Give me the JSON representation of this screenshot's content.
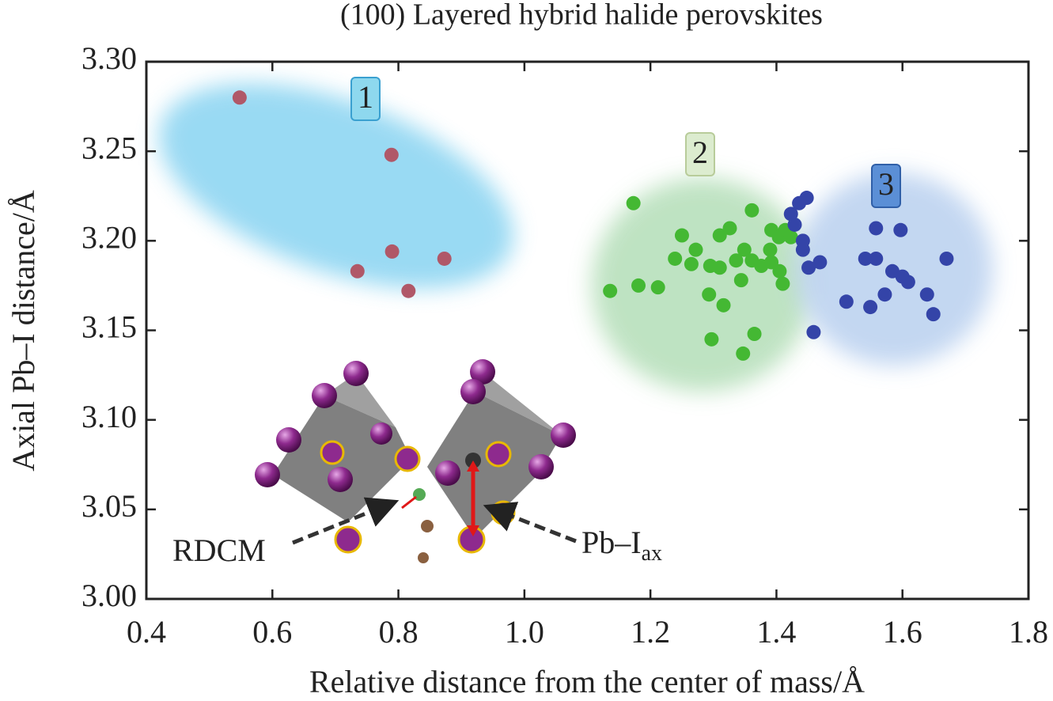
{
  "chart_data": {
    "type": "scatter",
    "title": "(100) Layered hybrid halide perovskites",
    "x_label": "Relative distance from the center of mass/Å",
    "y_label": "Axial Pb–I distance/Å",
    "xlim": [
      0.4,
      1.8
    ],
    "ylim": [
      3.0,
      3.3
    ],
    "xticks": [
      0.4,
      0.6,
      0.8,
      {
        "value": 1.0,
        "label": "1.0"
      },
      1.2,
      1.4,
      1.6,
      1.8
    ],
    "yticks": [
      {
        "value": 3.0,
        "label": "3.00"
      },
      3.05,
      {
        "value": 3.1,
        "label": "3.10"
      },
      3.15,
      {
        "value": 3.2,
        "label": "3.20"
      },
      3.25,
      {
        "value": 3.3,
        "label": "3.30"
      }
    ],
    "annotations": [
      {
        "text": "RDCM"
      },
      {
        "text": "Pb–I",
        "subscript": "ax"
      }
    ],
    "series": [
      {
        "name": "1",
        "color": "#b05868",
        "x": [
          0.548,
          0.789,
          0.79,
          0.735,
          0.873,
          0.816
        ],
        "y": [
          3.28,
          3.248,
          3.194,
          3.183,
          3.19,
          3.172
        ]
      },
      {
        "name": "2",
        "color": "#44b833",
        "x": [
          1.173,
          1.25,
          1.239,
          1.272,
          1.31,
          1.326,
          1.361,
          1.136,
          1.181,
          1.212,
          1.265,
          1.295,
          1.31,
          1.336,
          1.349,
          1.361,
          1.376,
          1.39,
          1.392,
          1.404,
          1.414,
          1.423,
          1.392,
          1.405,
          1.41,
          1.293,
          1.316,
          1.344,
          1.297,
          1.347,
          1.365
        ],
        "y": [
          3.221,
          3.203,
          3.19,
          3.195,
          3.203,
          3.207,
          3.217,
          3.172,
          3.175,
          3.174,
          3.187,
          3.186,
          3.185,
          3.189,
          3.195,
          3.189,
          3.186,
          3.195,
          3.206,
          3.202,
          3.206,
          3.202,
          3.188,
          3.183,
          3.176,
          3.17,
          3.164,
          3.178,
          3.145,
          3.137,
          3.148
        ]
      },
      {
        "name": "3",
        "color": "#3444a8",
        "x": [
          1.448,
          1.436,
          1.423,
          1.429,
          1.442,
          1.442,
          1.451,
          1.469,
          1.459,
          1.558,
          1.597,
          1.541,
          1.558,
          1.584,
          1.6,
          1.609,
          1.67,
          1.639,
          1.572,
          1.511,
          1.549,
          1.649
        ],
        "y": [
          3.224,
          3.221,
          3.215,
          3.209,
          3.2,
          3.195,
          3.185,
          3.188,
          3.149,
          3.207,
          3.206,
          3.19,
          3.19,
          3.183,
          3.18,
          3.177,
          3.19,
          3.17,
          3.17,
          3.166,
          3.163,
          3.159
        ]
      }
    ]
  }
}
